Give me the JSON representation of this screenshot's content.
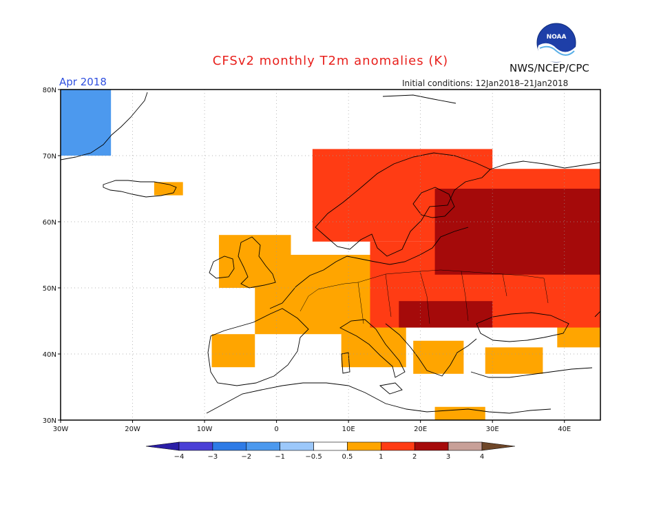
{
  "title": "CFSv2 monthly T2m anomalies (K)",
  "agency": "NWS/NCEP/CPC",
  "logo_text": "NOAA",
  "month_label": "Apr 2018",
  "initial_conditions": "Initial conditions: 12Jan2018–21Jan2018",
  "map": {
    "region": "Europe",
    "lon_range": [
      -30,
      45
    ],
    "lat_range": [
      30,
      80
    ],
    "lat_ticks": [
      {
        "value": 80,
        "label": "80N"
      },
      {
        "value": 70,
        "label": "70N"
      },
      {
        "value": 60,
        "label": "60N"
      },
      {
        "value": 50,
        "label": "50N"
      },
      {
        "value": 40,
        "label": "40N"
      },
      {
        "value": 30,
        "label": "30N"
      }
    ],
    "lon_ticks": [
      {
        "value": -30,
        "label": "30W"
      },
      {
        "value": -20,
        "label": "20W"
      },
      {
        "value": -10,
        "label": "10W"
      },
      {
        "value": 0,
        "label": "0"
      },
      {
        "value": 10,
        "label": "10E"
      },
      {
        "value": 20,
        "label": "20E"
      },
      {
        "value": 30,
        "label": "30E"
      },
      {
        "value": 40,
        "label": "40E"
      }
    ],
    "anomaly_regions": [
      {
        "name": "greenland",
        "category": "-1",
        "lon": [
          -30,
          -23
        ],
        "lat": [
          70,
          80
        ]
      },
      {
        "name": "iceland",
        "category": "0.5",
        "lon": [
          -17,
          -13
        ],
        "lat": [
          64,
          66
        ]
      },
      {
        "name": "british-isles",
        "category": "0.5",
        "lon": [
          -8,
          2
        ],
        "lat": [
          50,
          58
        ]
      },
      {
        "name": "iberia",
        "category": "0.5",
        "lon": [
          -9,
          -3
        ],
        "lat": [
          38,
          43
        ]
      },
      {
        "name": "western-europe",
        "category": "0.5",
        "lon": [
          -3,
          14
        ],
        "lat": [
          43,
          55
        ]
      },
      {
        "name": "italy",
        "category": "0.5",
        "lon": [
          9,
          18
        ],
        "lat": [
          38,
          45
        ]
      },
      {
        "name": "balkans",
        "category": "0.5",
        "lon": [
          19,
          26
        ],
        "lat": [
          37,
          42
        ]
      },
      {
        "name": "turkey",
        "category": "0.5",
        "lon": [
          29,
          37
        ],
        "lat": [
          37,
          41
        ]
      },
      {
        "name": "caucasus",
        "category": "0.5",
        "lon": [
          39,
          45
        ],
        "lat": [
          41,
          46
        ]
      },
      {
        "name": "north-africa",
        "category": "0.5",
        "lon": [
          22,
          29
        ],
        "lat": [
          30,
          32
        ]
      },
      {
        "name": "scandinavia",
        "category": "1",
        "lon": [
          5,
          30
        ],
        "lat": [
          57,
          71
        ]
      },
      {
        "name": "central-eastern-europe",
        "category": "1",
        "lon": [
          13,
          45
        ],
        "lat": [
          44,
          57
        ]
      },
      {
        "name": "northwest-russia",
        "category": "1",
        "lon": [
          22,
          45
        ],
        "lat": [
          55,
          68
        ]
      },
      {
        "name": "russia-core",
        "category": "2",
        "lon": [
          22,
          45
        ],
        "lat": [
          52,
          65
        ]
      },
      {
        "name": "pannonian",
        "category": "2",
        "lon": [
          17,
          30
        ],
        "lat": [
          44,
          48
        ]
      }
    ]
  },
  "colorbar": {
    "bins": [
      {
        "color": "#2a1ea6"
      },
      {
        "color": "#4a3fd6"
      },
      {
        "color": "#2e7be6"
      },
      {
        "color": "#4c99ee"
      },
      {
        "color": "#9cc8fa"
      },
      {
        "color": "#ffffff"
      },
      {
        "color": "#ffa500"
      },
      {
        "color": "#ff3c14"
      },
      {
        "color": "#a50a0a"
      },
      {
        "color": "#c8a098"
      },
      {
        "color": "#6e4628"
      }
    ],
    "tick_labels": [
      "−4",
      "−3",
      "−2",
      "−1",
      "−0.5",
      "0.5",
      "1",
      "2",
      "3",
      "4"
    ]
  },
  "colors": {
    "title": "#e8201c",
    "month": "#2f4fe0",
    "cat_-1": "#4c99ee",
    "cat_0.5": "#ffa500",
    "cat_1": "#ff3c14",
    "cat_2": "#a50a0a"
  }
}
